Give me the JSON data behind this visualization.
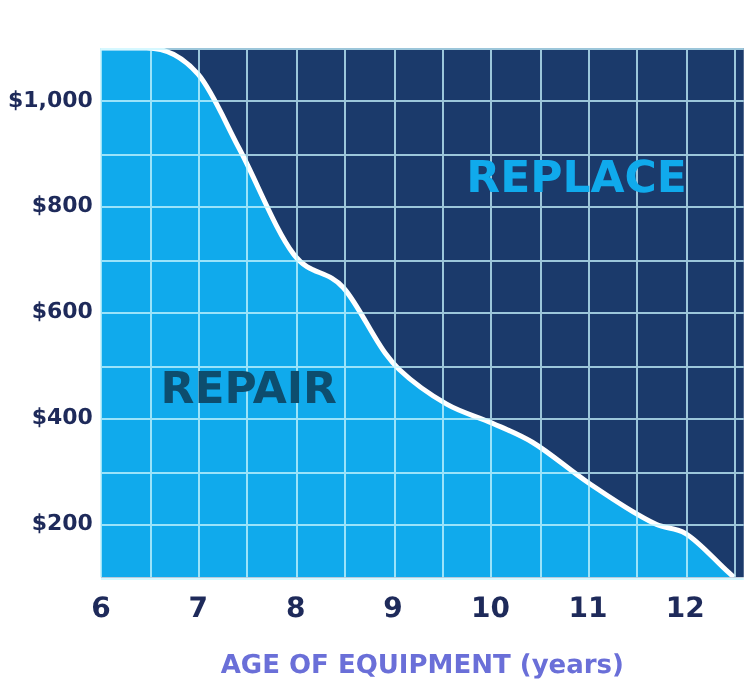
{
  "chart_data": {
    "type": "area",
    "xlabel": "AGE OF EQUIPMENT (years)",
    "x": [
      6,
      6.47,
      7,
      7.42,
      7.98,
      8.49,
      8.92,
      9.06,
      9.55,
      10.02,
      10.43,
      11,
      11.7,
      12,
      12.45,
      12.5
    ],
    "series": [
      {
        "color": "#10aaec",
        "values": [
          1100,
          1100,
          1050,
          910,
          710,
          647,
          523,
          493,
          427,
          391,
          355,
          279,
          200,
          183,
          108,
          100
        ]
      }
    ],
    "xlim": [
      6,
      12.6
    ],
    "ylim": [
      100,
      1100
    ],
    "xticks": [
      6,
      {
        "value": 6.5,
        "label": null
      },
      7,
      {
        "value": 7.5,
        "label": null
      },
      8,
      {
        "value": 8.5,
        "label": null
      },
      9,
      {
        "value": 9.5,
        "label": null
      },
      10,
      {
        "value": 10.5,
        "label": null
      },
      11,
      {
        "value": 11.5,
        "label": null
      },
      12,
      {
        "value": 12.5,
        "label": null
      }
    ],
    "yticks": [
      {
        "value": 100,
        "label": null
      },
      {
        "value": 200,
        "label": "$200"
      },
      {
        "value": 300,
        "label": null
      },
      {
        "value": 400,
        "label": "$400"
      },
      {
        "value": 500,
        "label": null
      },
      {
        "value": 600,
        "label": "$600"
      },
      {
        "value": 700,
        "label": null
      },
      {
        "value": 800,
        "label": "$800"
      },
      {
        "value": 900,
        "label": null
      },
      {
        "value": 1000,
        "label": "$1,000"
      },
      {
        "value": 1100,
        "label": null
      }
    ],
    "grid": true,
    "annotations": [
      "REPLACE",
      "REPAIR"
    ]
  }
}
